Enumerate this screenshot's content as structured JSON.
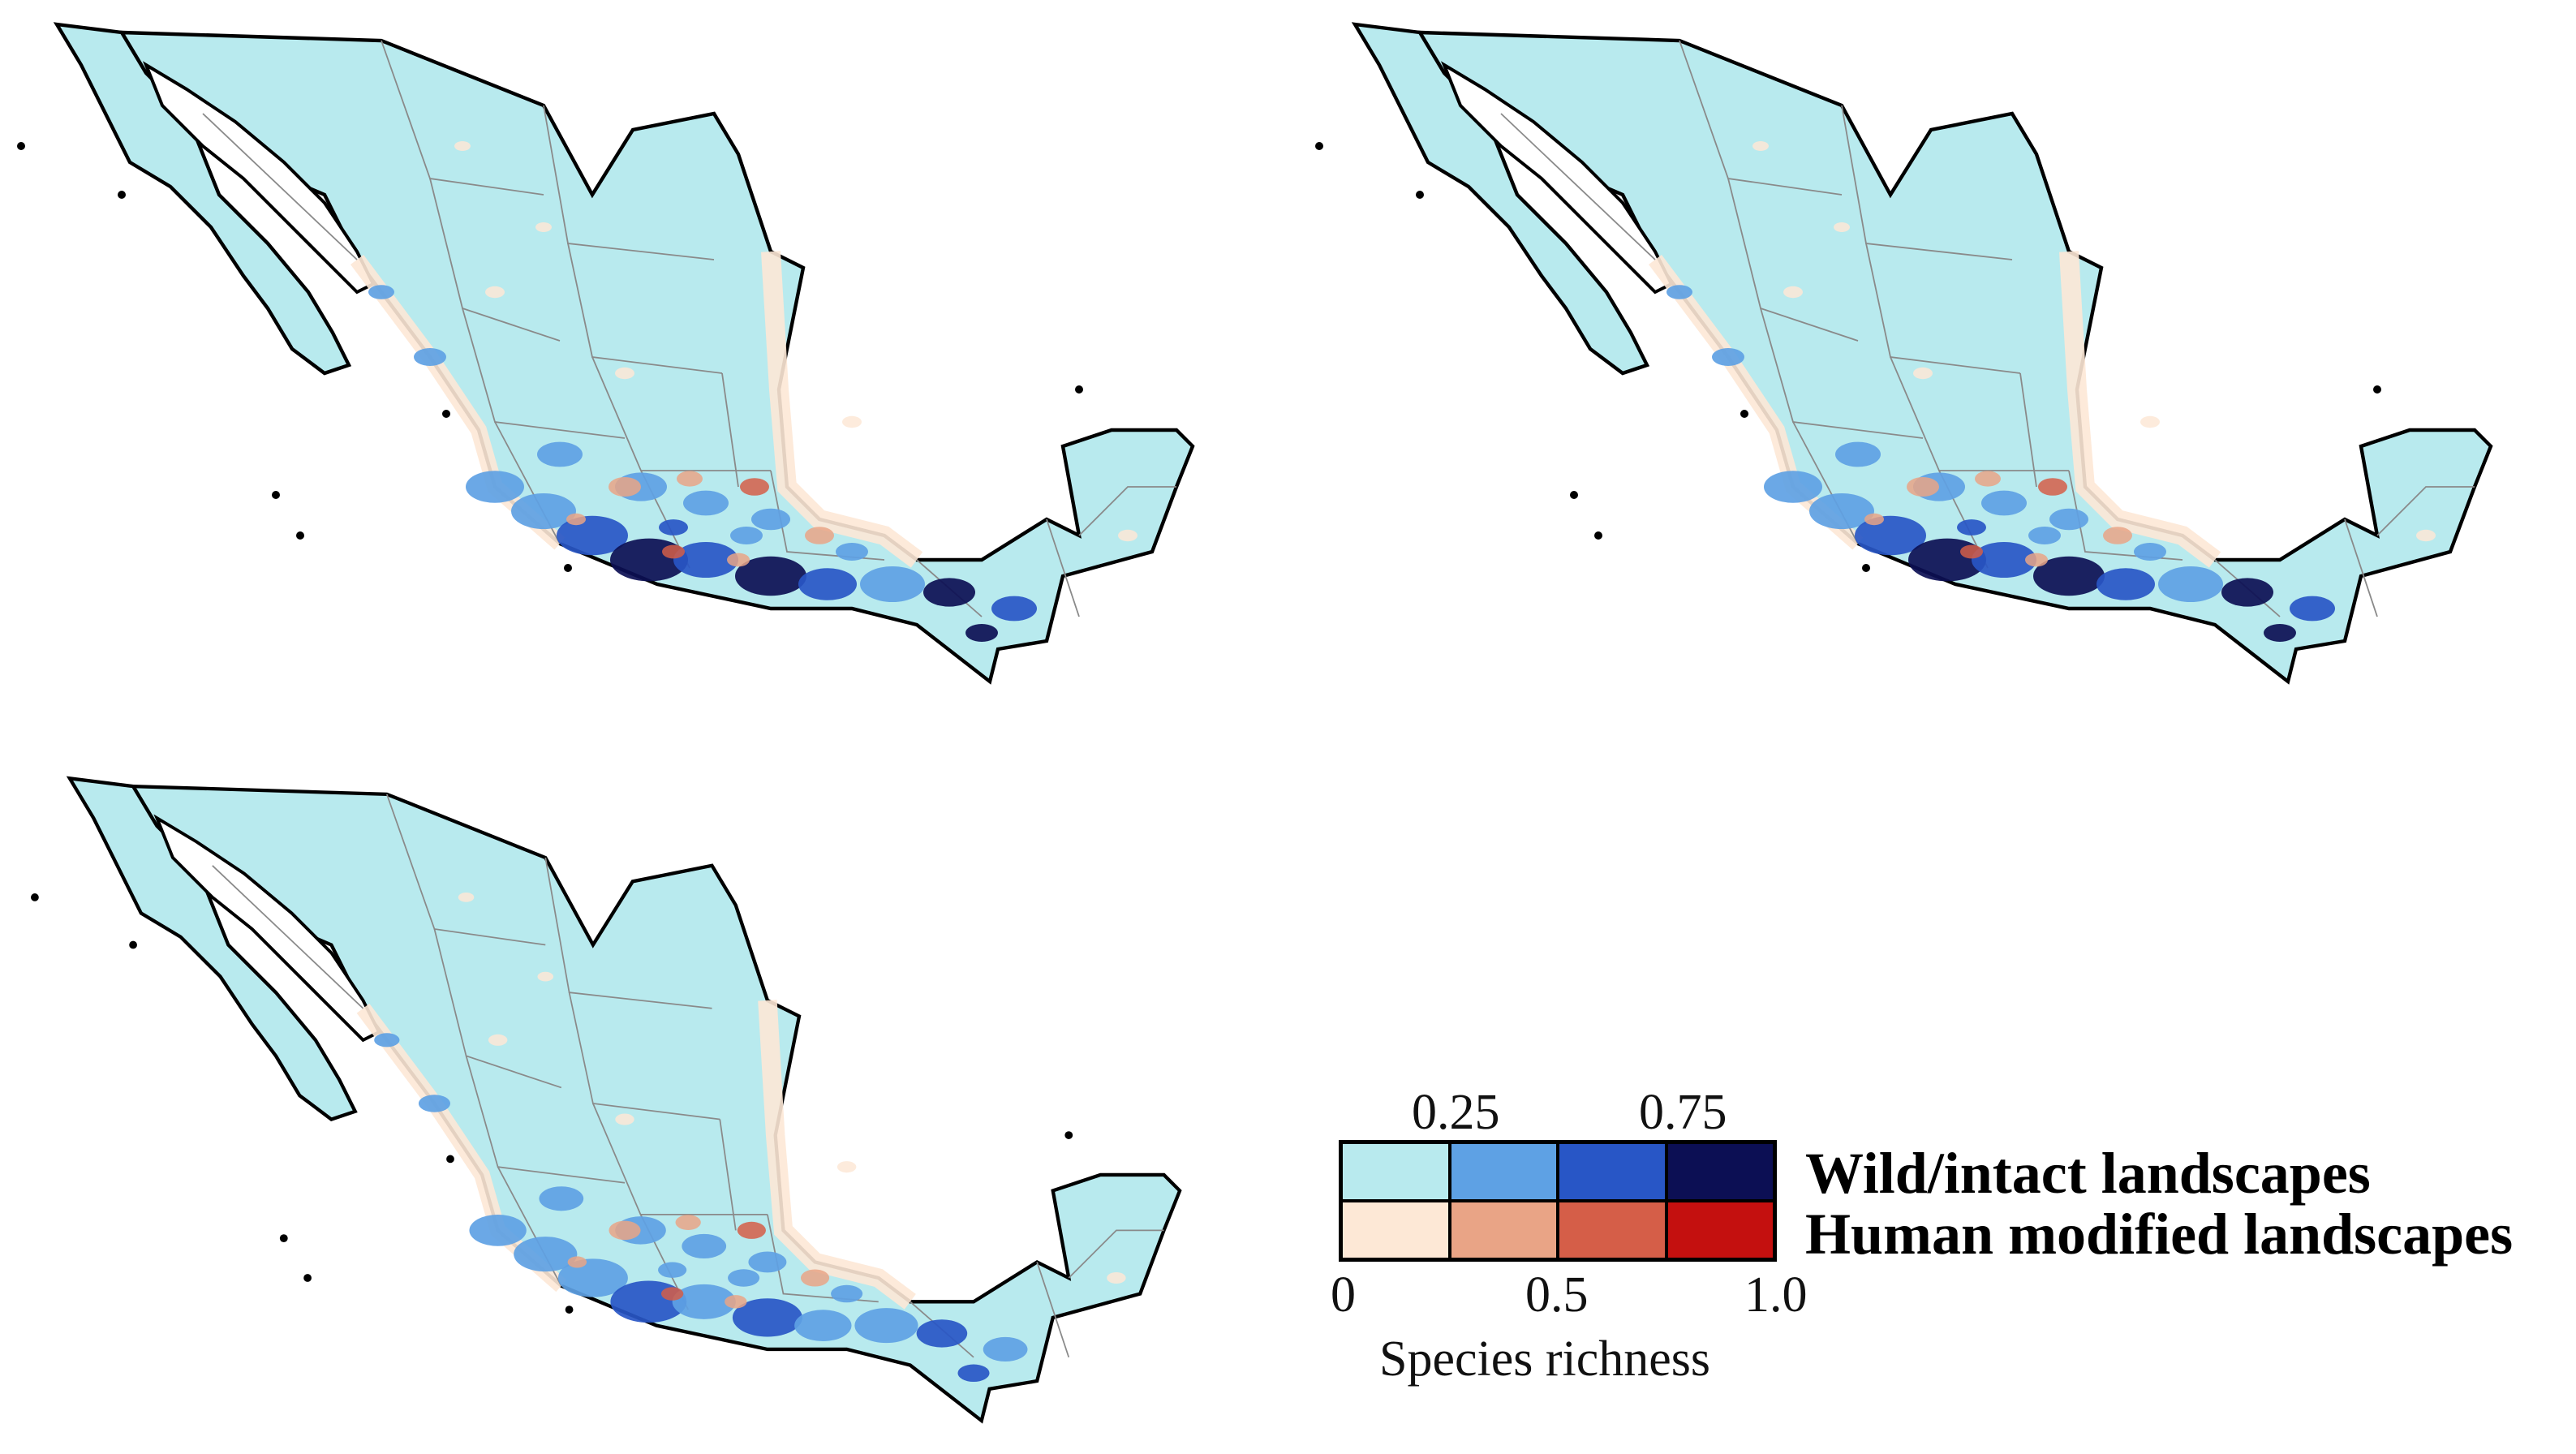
{
  "colors": {
    "wild": [
      "#b8eaee",
      "#5ea1e4",
      "#2856c6",
      "#0c0f54"
    ],
    "human": [
      "#fde8d6",
      "#e9a486",
      "#d55e48",
      "#c4100f"
    ],
    "outline": "#000000",
    "state_lines": "#8a8a8a"
  },
  "maps": [
    {
      "name": "map-panel-1"
    },
    {
      "name": "map-panel-2"
    },
    {
      "name": "map-panel-3"
    }
  ],
  "legend": {
    "top_ticks": [
      "0.25",
      "0.75"
    ],
    "bottom_ticks": [
      "0",
      "0.5",
      "1.0"
    ],
    "rows": [
      {
        "label": "Wild/intact landscapes"
      },
      {
        "label": "Human modified landscapes"
      }
    ],
    "title": "Species richness"
  }
}
